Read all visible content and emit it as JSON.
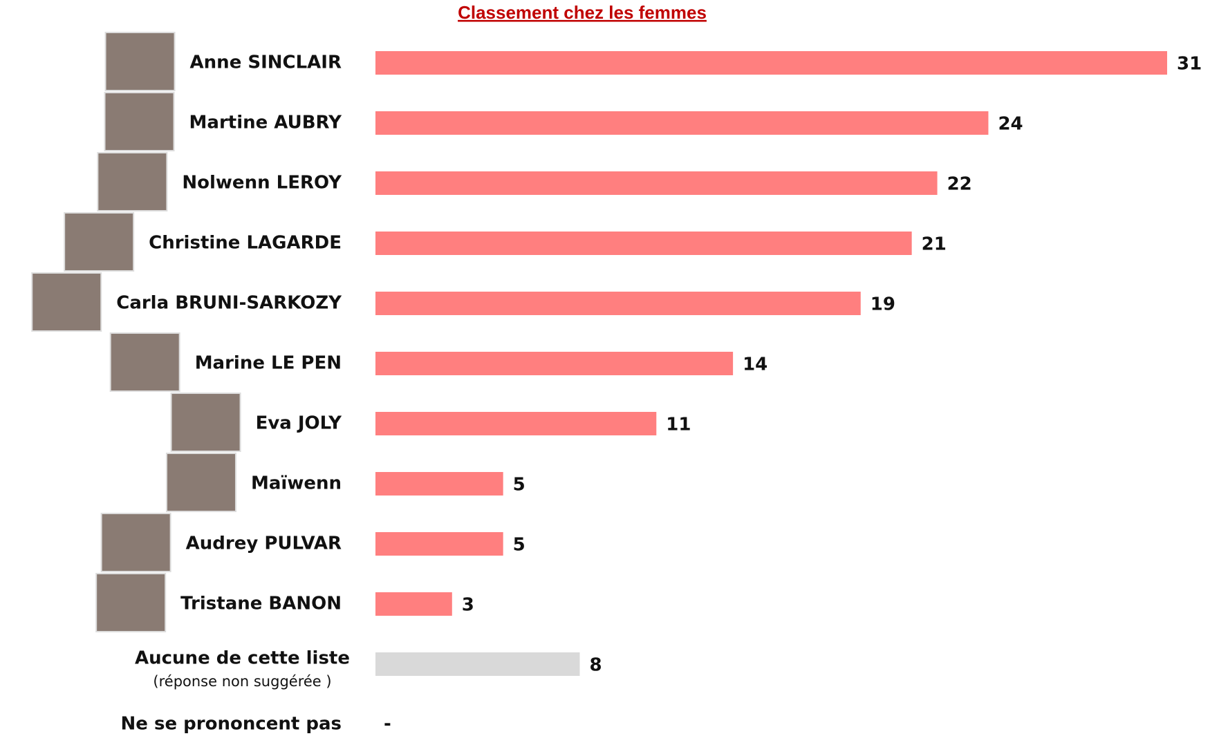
{
  "chart_data": {
    "type": "bar",
    "orientation": "horizontal",
    "title": "Classement chez les femmes",
    "categories": [
      "Anne SINCLAIR",
      "Martine AUBRY",
      "Nolwenn LEROY",
      "Christine LAGARDE",
      "Carla BRUNI-SARKOZY",
      "Marine LE PEN",
      "Eva JOLY",
      "Maïwenn",
      "Audrey PULVAR",
      "Tristane BANON",
      "Aucune de cette liste",
      "Ne se prononcent pas"
    ],
    "category_note": {
      "index": 10,
      "text": "(réponse non suggérée )"
    },
    "values": [
      31,
      24,
      22,
      21,
      19,
      14,
      11,
      5,
      5,
      3,
      8,
      null
    ],
    "value_labels": [
      "31",
      "24",
      "22",
      "21",
      "19",
      "14",
      "11",
      "5",
      "5",
      "3",
      "8",
      "-"
    ],
    "colors": [
      "#ff7f7f",
      "#ff7f7f",
      "#ff7f7f",
      "#ff7f7f",
      "#ff7f7f",
      "#ff7f7f",
      "#ff7f7f",
      "#ff7f7f",
      "#ff7f7f",
      "#ff7f7f",
      "#d9d9d9",
      "#d9d9d9"
    ],
    "photos": [
      true,
      true,
      true,
      true,
      true,
      true,
      true,
      true,
      true,
      true,
      false,
      false
    ]
  }
}
